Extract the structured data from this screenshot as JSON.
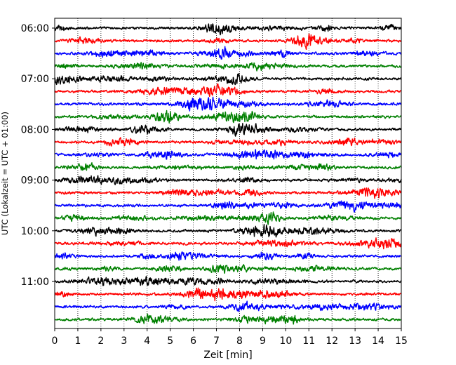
{
  "chart_data": {
    "type": "line",
    "subtype": "helicorder",
    "xlabel": "Zeit  [min]",
    "ylabel": "UTC (Lokalzeit = UTC + 01:00)",
    "xlim": [
      0,
      15
    ],
    "x_ticks": [
      "0",
      "1",
      "2",
      "3",
      "4",
      "5",
      "6",
      "7",
      "8",
      "9",
      "10",
      "11",
      "12",
      "13",
      "14",
      "15"
    ],
    "y_tick_labels": [
      "06:00",
      "07:00",
      "08:00",
      "09:00",
      "10:00",
      "11:00"
    ],
    "grid": "vertical dotted lines at every minute",
    "trace_interval_minutes": 15,
    "trace_colors": [
      "#000000",
      "#ff0000",
      "#0000ff",
      "#008000"
    ],
    "traces": [
      {
        "start": "06:00",
        "color": "#000000"
      },
      {
        "start": "06:15",
        "color": "#ff0000"
      },
      {
        "start": "06:30",
        "color": "#0000ff"
      },
      {
        "start": "06:45",
        "color": "#008000"
      },
      {
        "start": "07:00",
        "color": "#000000"
      },
      {
        "start": "07:15",
        "color": "#ff0000"
      },
      {
        "start": "07:30",
        "color": "#0000ff"
      },
      {
        "start": "07:45",
        "color": "#008000"
      },
      {
        "start": "08:00",
        "color": "#000000"
      },
      {
        "start": "08:15",
        "color": "#ff0000"
      },
      {
        "start": "08:30",
        "color": "#0000ff"
      },
      {
        "start": "08:45",
        "color": "#008000"
      },
      {
        "start": "09:00",
        "color": "#000000"
      },
      {
        "start": "09:15",
        "color": "#ff0000"
      },
      {
        "start": "09:30",
        "color": "#0000ff"
      },
      {
        "start": "09:45",
        "color": "#008000"
      },
      {
        "start": "10:00",
        "color": "#000000"
      },
      {
        "start": "10:15",
        "color": "#ff0000"
      },
      {
        "start": "10:30",
        "color": "#0000ff"
      },
      {
        "start": "10:45",
        "color": "#008000"
      },
      {
        "start": "11:00",
        "color": "#000000"
      },
      {
        "start": "11:15",
        "color": "#ff0000"
      },
      {
        "start": "11:30",
        "color": "#0000ff"
      },
      {
        "start": "11:45",
        "color": "#008000"
      }
    ]
  }
}
